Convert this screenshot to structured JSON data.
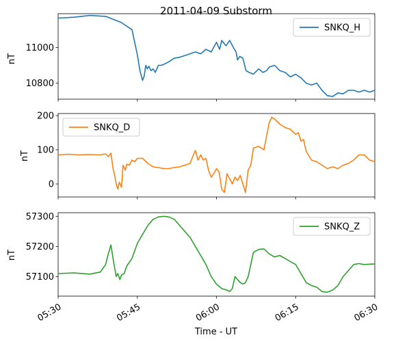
{
  "chart_data": [
    {
      "type": "line",
      "title": "2011-04-09  Substorm",
      "ylabel": "nT",
      "xlabel": "",
      "ylim": [
        10710,
        11190
      ],
      "yticks": [
        10800,
        11000
      ],
      "legend": "top-right",
      "series": [
        {
          "name": "SNKQ_H",
          "color": "#1f77b4",
          "x": [
            0,
            3,
            6,
            9,
            12,
            14,
            15,
            15.5,
            16,
            16.3,
            16.6,
            16.9,
            17.2,
            17.6,
            18,
            18.4,
            19,
            19.5,
            20,
            21,
            22,
            23,
            24,
            25,
            26,
            27,
            28,
            29,
            30,
            30.6,
            31,
            31.8,
            32.5,
            33.2,
            33.7,
            34,
            34.4,
            35,
            35.6,
            36.2,
            37,
            38,
            38.8,
            39.5,
            40,
            40.5,
            41,
            42,
            43,
            44,
            45,
            46,
            47,
            48,
            49,
            50,
            51,
            52,
            53,
            54,
            55,
            56,
            57,
            58,
            59,
            60
          ],
          "y": [
            11165,
            11170,
            11180,
            11175,
            11140,
            11100,
            10960,
            10870,
            10815,
            10840,
            10900,
            10880,
            10895,
            10870,
            10880,
            10860,
            10900,
            10900,
            10905,
            10920,
            10940,
            10945,
            10955,
            10965,
            10975,
            10965,
            10990,
            10975,
            11030,
            10990,
            11040,
            11010,
            11040,
            11000,
            10975,
            10930,
            10950,
            10940,
            10870,
            10860,
            10850,
            10880,
            10860,
            10870,
            10890,
            10895,
            10900,
            10870,
            10860,
            10835,
            10850,
            10830,
            10800,
            10790,
            10800,
            10760,
            10730,
            10725,
            10745,
            10740,
            10760,
            10760,
            10750,
            10760,
            10750,
            10760
          ]
        }
      ]
    },
    {
      "type": "line",
      "title": "",
      "ylabel": "nT",
      "xlabel": "",
      "ylim": [
        -38,
        206
      ],
      "yticks": [
        0,
        100,
        200
      ],
      "legend": "top-left",
      "series": [
        {
          "name": "SNKQ_D",
          "color": "#ff7f0e",
          "x": [
            0,
            2,
            4,
            6,
            8,
            9,
            9.5,
            10,
            10.4,
            10.7,
            11,
            11.3,
            11.6,
            12,
            12.3,
            12.7,
            13,
            13.5,
            14,
            14.5,
            15,
            16,
            17,
            18,
            19,
            20,
            21,
            22,
            23,
            24,
            25,
            25.5,
            26,
            26.5,
            27,
            27.5,
            28,
            28.5,
            29,
            29.5,
            30,
            30.5,
            31,
            31.5,
            32,
            32.5,
            33,
            33.5,
            34,
            34.5,
            35,
            35.5,
            36,
            36.5,
            37,
            38,
            39,
            39.5,
            40,
            40.5,
            41,
            42,
            43,
            44,
            45,
            45.5,
            46,
            46.5,
            47,
            48,
            49,
            50,
            51,
            52,
            53,
            54,
            55,
            56,
            57,
            58,
            59,
            60
          ],
          "y": [
            85,
            87,
            85,
            86,
            85,
            88,
            80,
            90,
            45,
            25,
            0,
            -15,
            5,
            -10,
            55,
            40,
            58,
            55,
            70,
            65,
            75,
            75,
            60,
            50,
            48,
            45,
            45,
            48,
            50,
            55,
            60,
            80,
            98,
            70,
            85,
            70,
            75,
            40,
            20,
            30,
            45,
            35,
            -15,
            -25,
            30,
            15,
            0,
            20,
            10,
            25,
            0,
            -25,
            40,
            55,
            105,
            110,
            100,
            140,
            180,
            195,
            190,
            175,
            165,
            160,
            145,
            150,
            125,
            130,
            95,
            70,
            65,
            55,
            45,
            50,
            45,
            55,
            60,
            70,
            85,
            85,
            70,
            65
          ]
        }
      ]
    },
    {
      "type": "line",
      "title": "",
      "ylabel": "nT",
      "xlabel": "Time - UT",
      "ylim": [
        57035,
        57312
      ],
      "yticks": [
        57100,
        57200,
        57300
      ],
      "xtick_labels": [
        "05:30",
        "05:45",
        "06:00",
        "06:15",
        "06:30"
      ],
      "legend": "top-right",
      "series": [
        {
          "name": "SNKQ_Z",
          "color": "#2ca02c",
          "x": [
            0,
            3,
            6,
            8,
            9,
            9.5,
            10,
            10.5,
            11,
            11.3,
            11.7,
            12,
            12.5,
            13,
            14,
            15,
            16,
            17,
            18,
            19,
            20,
            21,
            22,
            23,
            24,
            25,
            26,
            27,
            28,
            29,
            30,
            31,
            32,
            32.5,
            33,
            33.5,
            34,
            34.5,
            35,
            35.5,
            36,
            36.5,
            37,
            38,
            39,
            40,
            41,
            42,
            43,
            44,
            45,
            46,
            47,
            48,
            49,
            50,
            51,
            52,
            53,
            54,
            55,
            56,
            57,
            58,
            59,
            60
          ],
          "y": [
            57110,
            57112,
            57108,
            57115,
            57140,
            57175,
            57205,
            57150,
            57100,
            57110,
            57090,
            57105,
            57110,
            57135,
            57160,
            57210,
            57240,
            57270,
            57290,
            57298,
            57300,
            57298,
            57290,
            57270,
            57250,
            57230,
            57200,
            57170,
            57140,
            57100,
            57075,
            57060,
            57055,
            57050,
            57060,
            57100,
            57090,
            57080,
            57075,
            57080,
            57100,
            57140,
            57180,
            57190,
            57192,
            57175,
            57165,
            57170,
            57160,
            57150,
            57140,
            57110,
            57080,
            57070,
            57065,
            57050,
            57048,
            57055,
            57070,
            57100,
            57120,
            57140,
            57143,
            57140,
            57141,
            57142
          ]
        }
      ]
    }
  ],
  "shared_x": {
    "xlim": [
      0,
      60
    ],
    "tick_minutes": [
      0,
      15,
      30,
      45,
      60
    ],
    "tick_labels": [
      "05:30",
      "05:45",
      "06:00",
      "06:15",
      "06:30"
    ]
  }
}
